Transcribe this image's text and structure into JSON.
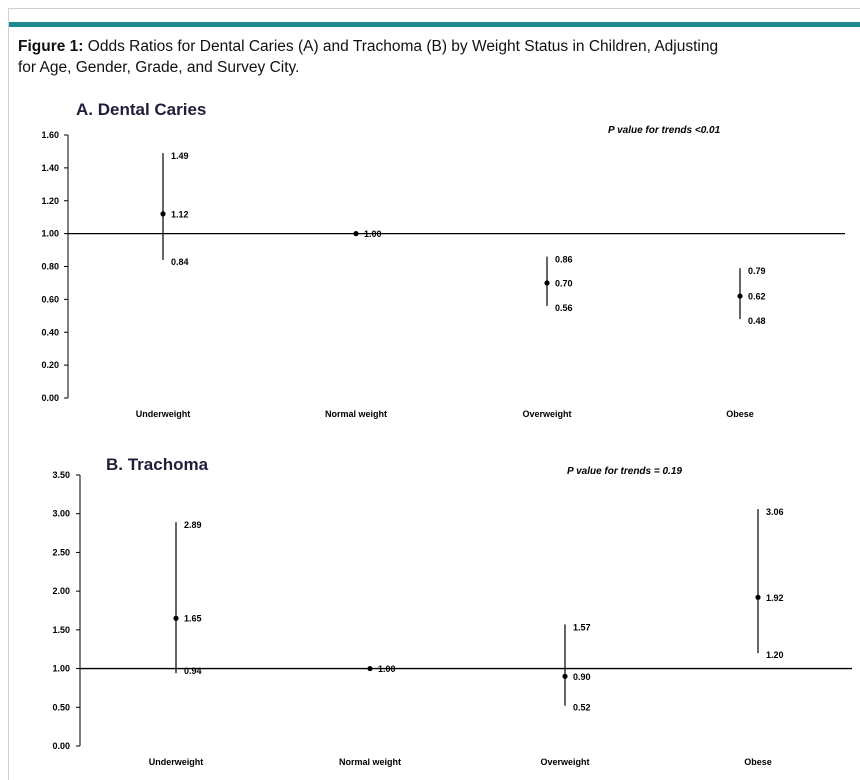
{
  "caption": {
    "label": "Figure 1:",
    "line1": "Odds Ratios for Dental Caries (A) and Trachoma (B) by Weight Status in Children, Adjusting",
    "line2": "for Age, Gender, Grade, and Survey City."
  },
  "colors": {
    "accent_bar": "#1c8a8f",
    "marks": "#000000",
    "title": "#1f1f3a"
  },
  "chart_data": [
    {
      "type": "scatter",
      "title": "A. Dental Caries",
      "annotation": "P value for trends <0.01",
      "ylim": [
        0,
        1.6
      ],
      "yticks": [
        "0.00",
        "0.20",
        "0.40",
        "0.60",
        "0.80",
        "1.00",
        "1.20",
        "1.40",
        "1.60"
      ],
      "reference_line": 1.0,
      "categories": [
        "Underweight",
        "Normal weight",
        "Overweight",
        "Obese"
      ],
      "points": [
        {
          "category": "Underweight",
          "or": 1.12,
          "lower": 0.84,
          "upper": 1.49,
          "or_label": "1.12",
          "lower_label": "0.84",
          "upper_label": "1.49"
        },
        {
          "category": "Normal weight",
          "or": 1.0,
          "lower": 1.0,
          "upper": 1.0,
          "or_label": "1.00",
          "lower_label": "",
          "upper_label": ""
        },
        {
          "category": "Overweight",
          "or": 0.7,
          "lower": 0.56,
          "upper": 0.86,
          "or_label": "0.70",
          "lower_label": "0.56",
          "upper_label": "0.86"
        },
        {
          "category": "Obese",
          "or": 0.62,
          "lower": 0.48,
          "upper": 0.79,
          "or_label": "0.62",
          "lower_label": "0.48",
          "upper_label": "0.79"
        }
      ]
    },
    {
      "type": "scatter",
      "title": "B. Trachoma",
      "annotation": "P value for trends = 0.19",
      "ylim": [
        0,
        3.5
      ],
      "yticks": [
        "0.00",
        "0.50",
        "1.00",
        "1.50",
        "2.00",
        "2.50",
        "3.00",
        "3.50"
      ],
      "reference_line": 1.0,
      "categories": [
        "Underweight",
        "Normal weight",
        "Overweight",
        "Obese"
      ],
      "points": [
        {
          "category": "Underweight",
          "or": 1.65,
          "lower": 0.94,
          "upper": 2.89,
          "or_label": "1.65",
          "lower_label": "0.94",
          "upper_label": "2.89"
        },
        {
          "category": "Normal weight",
          "or": 1.0,
          "lower": 1.0,
          "upper": 1.0,
          "or_label": "1.00",
          "lower_label": "",
          "upper_label": ""
        },
        {
          "category": "Overweight",
          "or": 0.9,
          "lower": 0.52,
          "upper": 1.57,
          "or_label": "0.90",
          "lower_label": "0.52",
          "upper_label": "1.57"
        },
        {
          "category": "Obese",
          "or": 1.92,
          "lower": 1.2,
          "upper": 3.06,
          "or_label": "1.92",
          "lower_label": "1.20",
          "upper_label": "3.06"
        }
      ]
    }
  ]
}
